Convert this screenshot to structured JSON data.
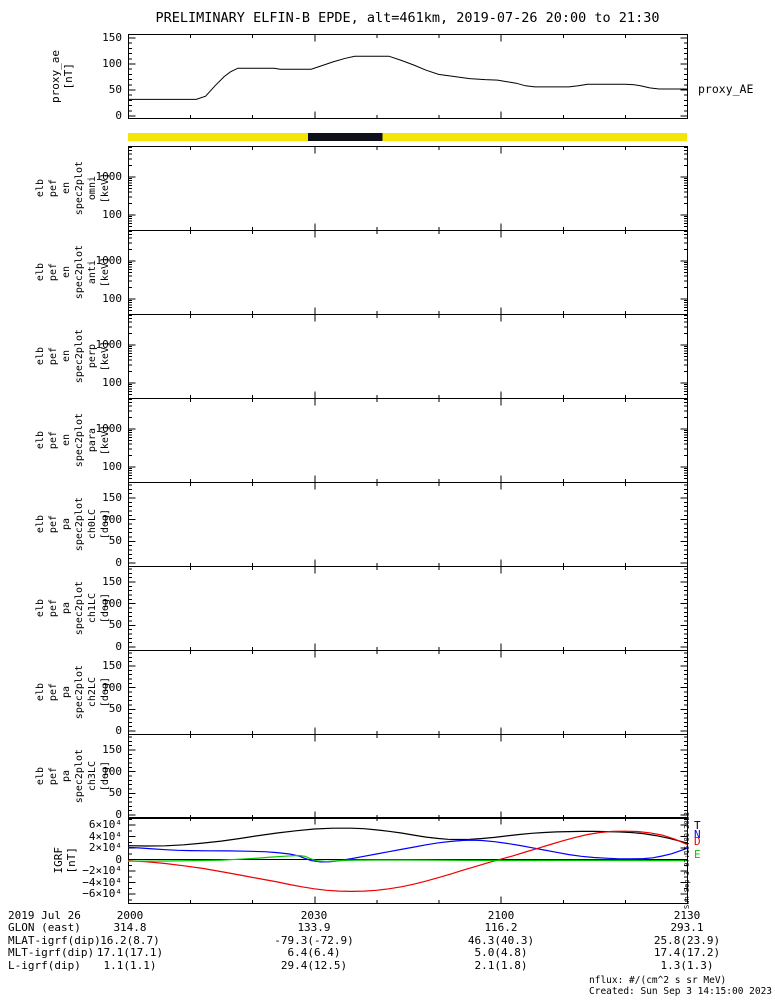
{
  "title": "PRELIMINARY ELFIN-B EPDE, alt=461km, 2019-07-26 20:00 to 21:30",
  "proxy": {
    "ylabel": [
      "proxy_ae",
      "[nT]"
    ],
    "right_label": "proxy_AE",
    "yticks": [
      "0",
      "50",
      "100",
      "150"
    ]
  },
  "panels": [
    {
      "ylabel": [
        "elb",
        "pef",
        "en",
        "spec2plot",
        "omni",
        "[keV]"
      ],
      "yticks": [
        "100",
        "1000"
      ]
    },
    {
      "ylabel": [
        "elb",
        "pef",
        "en",
        "spec2plot",
        "anti",
        "[keV]"
      ],
      "yticks": [
        "100",
        "1000"
      ]
    },
    {
      "ylabel": [
        "elb",
        "pef",
        "en",
        "spec2plot",
        "perp",
        "[keV]"
      ],
      "yticks": [
        "100",
        "1000"
      ]
    },
    {
      "ylabel": [
        "elb",
        "pef",
        "en",
        "spec2plot",
        "para",
        "[keV]"
      ],
      "yticks": [
        "100",
        "1000"
      ]
    },
    {
      "ylabel": [
        "elb",
        "pef",
        "pa",
        "spec2plot",
        "ch0LC",
        "[deg]"
      ],
      "yticks": [
        "0",
        "50",
        "100",
        "150"
      ]
    },
    {
      "ylabel": [
        "elb",
        "pef",
        "pa",
        "spec2plot",
        "ch1LC",
        "[deg]"
      ],
      "yticks": [
        "0",
        "50",
        "100",
        "150"
      ]
    },
    {
      "ylabel": [
        "elb",
        "pef",
        "pa",
        "spec2plot",
        "ch2LC",
        "[deg]"
      ],
      "yticks": [
        "0",
        "50",
        "100",
        "150"
      ]
    },
    {
      "ylabel": [
        "elb",
        "pef",
        "pa",
        "spec2plot",
        "ch3LC",
        "[deg]"
      ],
      "yticks": [
        "0",
        "50",
        "100",
        "150"
      ]
    }
  ],
  "igrf": {
    "ylabel": [
      "IGRF",
      "[nT]"
    ],
    "yticks": [
      "6×10⁴",
      "4×10⁴",
      "2×10⁴",
      "0",
      "−2×10⁴",
      "−4×10⁴",
      "−6×10⁴"
    ],
    "legend": [
      {
        "label": "T",
        "color": "#000000"
      },
      {
        "label": "N",
        "color": "#0000ff"
      },
      {
        "label": "D",
        "color": "#ee0000"
      },
      {
        "label": "E",
        "color": "#00c800"
      }
    ],
    "side_text": "Sun Sep  3 07:15:00 2023"
  },
  "ephemeris": {
    "rows": [
      {
        "label": "2019 Jul 26",
        "values": [
          "2000",
          "2030",
          "2100",
          "2130"
        ]
      },
      {
        "label": "GLON (east)",
        "values": [
          "314.8",
          "133.9",
          "116.2",
          "293.1"
        ]
      },
      {
        "label": "MLAT-igrf(dip)",
        "values": [
          "16.2(8.7)",
          "-79.3(-72.9)",
          "46.3(40.3)",
          "25.8(23.9)"
        ]
      },
      {
        "label": "MLT-igrf(dip)",
        "values": [
          "17.1(17.1)",
          "6.4(6.4)",
          "5.0(4.8)",
          "17.4(17.2)"
        ]
      },
      {
        "label": "L-igrf(dip)",
        "values": [
          "1.1(1.1)",
          "29.4(12.5)",
          "2.1(1.8)",
          "1.3(1.3)"
        ]
      }
    ]
  },
  "footer": {
    "units": "nflux: #/(cm^2 s sr MeV)",
    "created": "Created: Sun Sep  3 14:15:00 2023"
  },
  "colors": {
    "frame": "#000000",
    "bar_yellow": "#f5e406",
    "bar_black": "#10101c",
    "igrf_T": "#000000",
    "igrf_N": "#0000ff",
    "igrf_D": "#ee0000",
    "igrf_E": "#00c800"
  },
  "chart_data": [
    {
      "type": "line",
      "title": "proxy_AE",
      "ylabel": "proxy_ae [nT]",
      "ylim": [
        0,
        150
      ],
      "x_unit": "minutes after 2019-07-26 20:00 UT",
      "xlim": [
        0,
        90
      ],
      "xtick_labels": [
        "2000",
        "2030",
        "2100",
        "2130"
      ],
      "grid": false,
      "series": [
        {
          "name": "proxy_AE",
          "color": "#000000",
          "points": [
            [
              0,
              32
            ],
            [
              11,
              32
            ],
            [
              12.5,
              38
            ],
            [
              14,
              58
            ],
            [
              15.5,
              76
            ],
            [
              16.5,
              85
            ],
            [
              17.7,
              92
            ],
            [
              23.5,
              92
            ],
            [
              24.5,
              90
            ],
            [
              29.5,
              90
            ],
            [
              31,
              96
            ],
            [
              33,
              104
            ],
            [
              35,
              111
            ],
            [
              36.5,
              115
            ],
            [
              42,
              115
            ],
            [
              44,
              107
            ],
            [
              46,
              98
            ],
            [
              48,
              88
            ],
            [
              50,
              80
            ],
            [
              52.5,
              76
            ],
            [
              55,
              72
            ],
            [
              57.5,
              70
            ],
            [
              59.5,
              69
            ],
            [
              61,
              66
            ],
            [
              62.5,
              63
            ],
            [
              64,
              58
            ],
            [
              65.5,
              56
            ],
            [
              71,
              56
            ],
            [
              72.5,
              58
            ],
            [
              74,
              61
            ],
            [
              80,
              61
            ],
            [
              81.5,
              60
            ],
            [
              82.5,
              58
            ],
            [
              84,
              54
            ],
            [
              85.5,
              52
            ],
            [
              90,
              52
            ]
          ]
        }
      ]
    },
    {
      "type": "bar",
      "title": "data-availability bar",
      "xlim": [
        0,
        90
      ],
      "segments": [
        {
          "start_min": 0,
          "end_min": 90,
          "color": "#f5e406"
        },
        {
          "start_min": 29,
          "end_min": 41,
          "color": "#10101c"
        }
      ]
    },
    {
      "type": "heatmap",
      "title": "EPDE spectrogram panels (all empty / no flux plotted)",
      "panel_titles": [
        "elb pef en spec2plot omni [keV]",
        "elb pef en spec2plot anti [keV]",
        "elb pef en spec2plot perp [keV]",
        "elb pef en spec2plot para [keV]",
        "elb pef pa spec2plot ch0LC [deg]",
        "elb pef pa spec2plot ch1LC [deg]",
        "elb pef pa spec2plot ch2LC [deg]",
        "elb pef pa spec2plot ch3LC [deg]"
      ],
      "energy_ylim_keV": [
        45,
        6500
      ],
      "energy_yscale": "log",
      "pa_ylim_deg": [
        0,
        180
      ],
      "values": []
    },
    {
      "type": "line",
      "title": "IGRF [nT]",
      "ylim": [
        -75000,
        75000
      ],
      "xlim": [
        0,
        90
      ],
      "x_unit": "minutes after 2019-07-26 20:00 UT",
      "legend_position": "right",
      "series": [
        {
          "name": "T",
          "color": "#000000",
          "points": [
            [
              0,
              24000
            ],
            [
              3,
              23500
            ],
            [
              6,
              23800
            ],
            [
              9,
              25500
            ],
            [
              12,
              28500
            ],
            [
              15,
              32000
            ],
            [
              18,
              36500
            ],
            [
              21,
              41500
            ],
            [
              24,
              46000
            ],
            [
              27,
              50000
            ],
            [
              30,
              53000
            ],
            [
              33,
              54500
            ],
            [
              36,
              54500
            ],
            [
              38,
              53500
            ],
            [
              40,
              51500
            ],
            [
              42,
              49000
            ],
            [
              44,
              46000
            ],
            [
              46,
              42500
            ],
            [
              48,
              39000
            ],
            [
              50,
              36500
            ],
            [
              51.5,
              35200
            ],
            [
              53,
              34800
            ],
            [
              55,
              35200
            ],
            [
              57,
              36500
            ],
            [
              59,
              38500
            ],
            [
              61,
              41000
            ],
            [
              63,
              43500
            ],
            [
              65,
              45500
            ],
            [
              67,
              47000
            ],
            [
              69,
              48000
            ],
            [
              71,
              48600
            ],
            [
              73,
              48900
            ],
            [
              75,
              48900
            ],
            [
              77,
              48600
            ],
            [
              79,
              48000
            ],
            [
              81,
              47000
            ],
            [
              83,
              45000
            ],
            [
              85,
              41500
            ],
            [
              87,
              37000
            ],
            [
              88.5,
              33000
            ],
            [
              90,
              28500
            ]
          ]
        },
        {
          "name": "N",
          "color": "#0000ff",
          "points": [
            [
              0,
              21000
            ],
            [
              2,
              20000
            ],
            [
              4,
              18500
            ],
            [
              6,
              17000
            ],
            [
              8,
              16000
            ],
            [
              10,
              15500
            ],
            [
              13,
              15200
            ],
            [
              16,
              15000
            ],
            [
              19,
              14500
            ],
            [
              22,
              13500
            ],
            [
              24,
              12000
            ],
            [
              26,
              9500
            ],
            [
              27.5,
              6000
            ],
            [
              28.5,
              2000
            ],
            [
              29.5,
              -2000
            ],
            [
              31,
              -4200
            ],
            [
              32.5,
              -4000
            ],
            [
              34,
              -2000
            ],
            [
              36,
              1500
            ],
            [
              38,
              5500
            ],
            [
              40,
              9500
            ],
            [
              42,
              13500
            ],
            [
              44,
              17500
            ],
            [
              46,
              21500
            ],
            [
              48,
              25500
            ],
            [
              50,
              29000
            ],
            [
              52,
              31500
            ],
            [
              54,
              33200
            ],
            [
              55.5,
              33500
            ],
            [
              57,
              33000
            ],
            [
              59,
              31000
            ],
            [
              61,
              28000
            ],
            [
              63,
              24500
            ],
            [
              65,
              20500
            ],
            [
              67,
              16500
            ],
            [
              69,
              12500
            ],
            [
              71,
              8500
            ],
            [
              73,
              5500
            ],
            [
              75,
              3500
            ],
            [
              77,
              2200
            ],
            [
              79,
              1300
            ],
            [
              81,
              1000
            ],
            [
              83,
              1500
            ],
            [
              84.5,
              3000
            ],
            [
              86,
              6000
            ],
            [
              87.5,
              10000
            ],
            [
              89,
              15500
            ],
            [
              90,
              19500
            ]
          ]
        },
        {
          "name": "D",
          "color": "#ee0000",
          "points": [
            [
              0,
              -2000
            ],
            [
              3,
              -4000
            ],
            [
              6,
              -7000
            ],
            [
              9,
              -11000
            ],
            [
              12,
              -15500
            ],
            [
              15,
              -21000
            ],
            [
              18,
              -27000
            ],
            [
              21,
              -33000
            ],
            [
              24,
              -39000
            ],
            [
              26,
              -43500
            ],
            [
              28,
              -47500
            ],
            [
              30,
              -51000
            ],
            [
              32,
              -53500
            ],
            [
              34,
              -55000
            ],
            [
              36,
              -55500
            ],
            [
              38,
              -55000
            ],
            [
              40,
              -53500
            ],
            [
              42,
              -51000
            ],
            [
              44,
              -47500
            ],
            [
              46,
              -43000
            ],
            [
              48,
              -37500
            ],
            [
              50,
              -31500
            ],
            [
              52,
              -25000
            ],
            [
              54,
              -18500
            ],
            [
              56,
              -12000
            ],
            [
              58,
              -5500
            ],
            [
              60,
              500
            ],
            [
              62,
              6500
            ],
            [
              64,
              13000
            ],
            [
              66,
              19500
            ],
            [
              68,
              26000
            ],
            [
              70,
              32500
            ],
            [
              72,
              38500
            ],
            [
              74,
              43500
            ],
            [
              76,
              47000
            ],
            [
              78,
              48800
            ],
            [
              80,
              49200
            ],
            [
              82,
              48700
            ],
            [
              84,
              46500
            ],
            [
              86,
              42500
            ],
            [
              88,
              35500
            ],
            [
              90,
              26000
            ]
          ]
        },
        {
          "name": "E",
          "color": "#00c800",
          "points": [
            [
              0,
              -3000
            ],
            [
              4,
              -2800
            ],
            [
              8,
              -2400
            ],
            [
              12,
              -1800
            ],
            [
              15,
              -1000
            ],
            [
              18,
              500
            ],
            [
              21,
              2500
            ],
            [
              23,
              4200
            ],
            [
              25,
              5500
            ],
            [
              26.5,
              6500
            ],
            [
              27.5,
              7000
            ],
            [
              28.5,
              5500
            ],
            [
              29.5,
              1000
            ],
            [
              30.5,
              -2500
            ],
            [
              32,
              -3500
            ],
            [
              33.5,
              -2500
            ],
            [
              35,
              -1500
            ],
            [
              37,
              -1000
            ],
            [
              40,
              -800
            ],
            [
              45,
              -900
            ],
            [
              50,
              -1200
            ],
            [
              55,
              -1500
            ],
            [
              60,
              -1800
            ],
            [
              65,
              -1800
            ],
            [
              70,
              -1500
            ],
            [
              75,
              -1500
            ],
            [
              80,
              -1800
            ],
            [
              85,
              -2000
            ],
            [
              90,
              -2000
            ]
          ]
        }
      ]
    }
  ]
}
